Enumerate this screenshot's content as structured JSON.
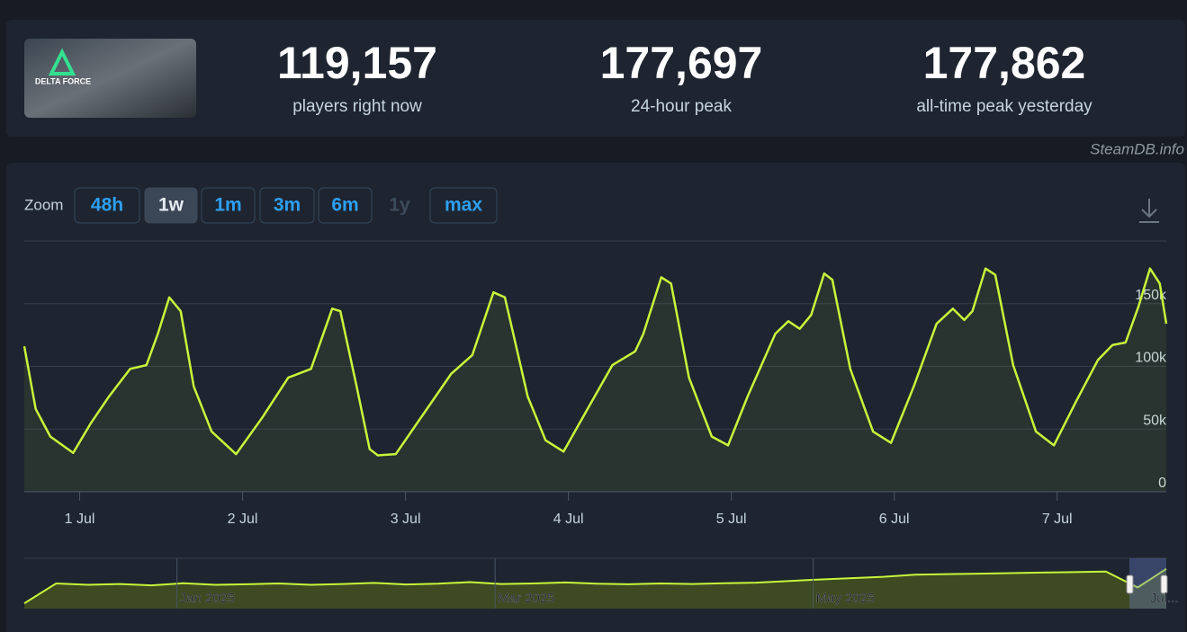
{
  "header": {
    "logo_text": "DELTA FORCE",
    "stats": [
      {
        "value": "119,157",
        "label": "players right now"
      },
      {
        "value": "177,697",
        "label": "24-hour peak"
      },
      {
        "value": "177,862",
        "label": "all-time peak yesterday"
      }
    ]
  },
  "watermark": "SteamDB.info",
  "zoom": {
    "label": "Zoom",
    "options": [
      {
        "label": "48h",
        "state": "normal"
      },
      {
        "label": "1w",
        "state": "active"
      },
      {
        "label": "1m",
        "state": "normal"
      },
      {
        "label": "3m",
        "state": "normal"
      },
      {
        "label": "6m",
        "state": "normal"
      },
      {
        "label": "1y",
        "state": "disabled"
      },
      {
        "label": "max",
        "state": "normal"
      }
    ]
  },
  "chart_data": [
    {
      "type": "line",
      "color": "#c8f53a",
      "grid": true,
      "xlim": [
        0.66,
        7.67
      ],
      "ylim": [
        0,
        200000
      ],
      "xticks": [
        {
          "value": 1,
          "label": "1 Jul"
        },
        {
          "value": 2,
          "label": "2 Jul"
        },
        {
          "value": 3,
          "label": "3 Jul"
        },
        {
          "value": 4,
          "label": "4 Jul"
        },
        {
          "value": 5,
          "label": "5 Jul"
        },
        {
          "value": 6,
          "label": "6 Jul"
        },
        {
          "value": 7,
          "label": "7 Jul"
        }
      ],
      "yticks": [
        0,
        {
          "value": 50000,
          "label": "50k"
        },
        {
          "value": 100000,
          "label": "100k"
        },
        {
          "value": 150000,
          "label": "150k"
        }
      ],
      "x": [
        0.66,
        0.73,
        0.82,
        0.96,
        1.07,
        1.18,
        1.31,
        1.41,
        1.48,
        1.55,
        1.62,
        1.7,
        1.81,
        1.96,
        2.12,
        2.28,
        2.42,
        2.55,
        2.6,
        2.7,
        2.78,
        2.83,
        2.94,
        3.11,
        3.28,
        3.41,
        3.54,
        3.61,
        3.75,
        3.86,
        3.97,
        4.1,
        4.27,
        4.41,
        4.46,
        4.57,
        4.63,
        4.74,
        4.88,
        4.98,
        5.1,
        5.27,
        5.35,
        5.42,
        5.49,
        5.57,
        5.62,
        5.73,
        5.87,
        5.98,
        6.12,
        6.26,
        6.36,
        6.43,
        6.48,
        6.56,
        6.62,
        6.73,
        6.87,
        6.98,
        7.12,
        7.25,
        7.34,
        7.42,
        7.5,
        7.57,
        7.63,
        7.67
      ],
      "values": [
        116000,
        66000,
        44000,
        31000,
        55000,
        76000,
        98000,
        101000,
        126000,
        155000,
        144000,
        84000,
        48000,
        30000,
        59000,
        91000,
        98000,
        146000,
        144000,
        84000,
        34000,
        29000,
        30000,
        62000,
        94000,
        109000,
        159000,
        155000,
        76000,
        41000,
        32000,
        62000,
        101000,
        112000,
        126000,
        171000,
        166000,
        91000,
        44000,
        37000,
        76000,
        126000,
        136000,
        130000,
        141000,
        174000,
        169000,
        98000,
        48000,
        39000,
        84000,
        134000,
        146000,
        137000,
        144000,
        178000,
        173000,
        101000,
        48000,
        37000,
        73000,
        105000,
        117000,
        119000,
        148000,
        178000,
        166000,
        134000
      ]
    },
    {
      "type": "area",
      "color": "#c8f53a",
      "xlim": [
        -0.96,
        6.22
      ],
      "ylim": [
        0,
        190000
      ],
      "xticks": [
        {
          "value": 0,
          "label": "Jan 2025"
        },
        {
          "value": 2,
          "label": "Mar 2025"
        },
        {
          "value": 4,
          "label": "May 2025"
        },
        {
          "value": 6.1,
          "label": "Jul..."
        }
      ],
      "x": [
        -0.96,
        -0.76,
        -0.56,
        -0.36,
        -0.16,
        0.04,
        0.24,
        0.44,
        0.64,
        0.84,
        1.04,
        1.24,
        1.44,
        1.64,
        1.84,
        2.04,
        2.24,
        2.44,
        2.64,
        2.84,
        3.04,
        3.24,
        3.44,
        3.64,
        3.84,
        4.04,
        4.24,
        4.44,
        4.64,
        4.84,
        5.04,
        5.24,
        5.44,
        5.64,
        5.84,
        6.04,
        6.22
      ],
      "values": [
        20000,
        95000,
        90000,
        93000,
        88000,
        96000,
        90000,
        92000,
        95000,
        90000,
        93000,
        97000,
        91000,
        94000,
        100000,
        93000,
        95000,
        99000,
        94000,
        92000,
        95000,
        93000,
        96000,
        98000,
        104000,
        110000,
        115000,
        120000,
        128000,
        130000,
        132000,
        134000,
        136000,
        138000,
        140000,
        80000,
        150000
      ]
    }
  ]
}
